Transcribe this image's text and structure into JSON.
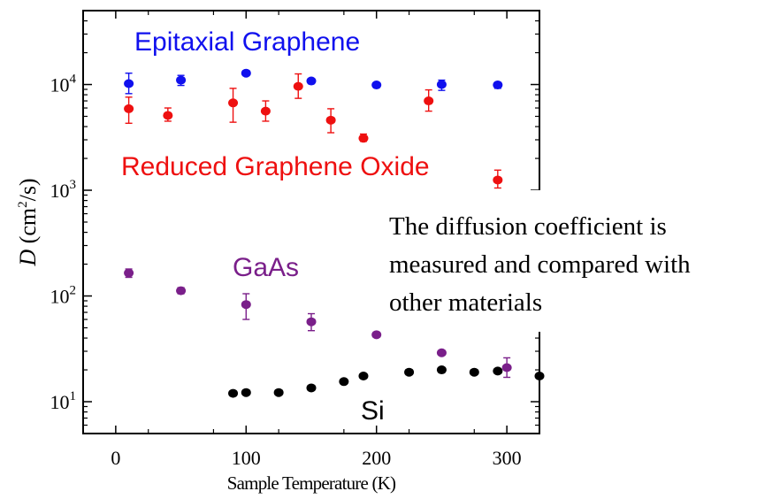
{
  "chart_data": {
    "type": "scatter",
    "xlabel": "Sample Temperature (K)",
    "ylabel": {
      "italic": "D",
      "open": " (cm",
      "sup": "2",
      "close": "/s)"
    },
    "xlim": [
      -25,
      325
    ],
    "ylim": [
      5,
      50000
    ],
    "yscale": "log",
    "grid": false,
    "x_ticks": [
      0,
      100,
      200,
      300
    ],
    "y_ticks": [
      {
        "value": 10,
        "base": "10",
        "exp": "1"
      },
      {
        "value": 100,
        "base": "10",
        "exp": "2"
      },
      {
        "value": 1000,
        "base": "10",
        "exp": "3"
      },
      {
        "value": 10000,
        "base": "10",
        "exp": "4"
      }
    ],
    "series": [
      {
        "name": "Epitaxial Graphene",
        "color": "#1010ee",
        "points": [
          {
            "x": 10,
            "y": 10200,
            "err": [
              8200,
              12800
            ]
          },
          {
            "x": 50,
            "y": 11000,
            "err": [
              9800,
              12200
            ]
          },
          {
            "x": 100,
            "y": 12800,
            "err": null
          },
          {
            "x": 150,
            "y": 10800,
            "err": null
          },
          {
            "x": 200,
            "y": 9900,
            "err": null
          },
          {
            "x": 250,
            "y": 10000,
            "err": [
              8800,
              11000
            ]
          },
          {
            "x": 293,
            "y": 9900,
            "err": [
              9200,
              10500
            ]
          }
        ]
      },
      {
        "name": "Reduced Graphene Oxide",
        "color": "#ee1010",
        "points": [
          {
            "x": 10,
            "y": 5900,
            "err": [
              4300,
              7600
            ]
          },
          {
            "x": 40,
            "y": 5100,
            "err": [
              4500,
              6000
            ]
          },
          {
            "x": 90,
            "y": 6700,
            "err": [
              4400,
              9200
            ]
          },
          {
            "x": 115,
            "y": 5600,
            "err": [
              4500,
              7000
            ]
          },
          {
            "x": 140,
            "y": 9600,
            "err": [
              7400,
              12600
            ]
          },
          {
            "x": 165,
            "y": 4600,
            "err": [
              3500,
              5900
            ]
          },
          {
            "x": 190,
            "y": 3100,
            "err": [
              2900,
              3400
            ]
          },
          {
            "x": 240,
            "y": 7000,
            "err": [
              5600,
              8900
            ]
          },
          {
            "x": 293,
            "y": 1250,
            "err": [
              1050,
              1550
            ]
          }
        ]
      },
      {
        "name": "GaAs",
        "color": "#7a1f8a",
        "points": [
          {
            "x": 10,
            "y": 165,
            "err": [
              150,
              180
            ]
          },
          {
            "x": 50,
            "y": 112,
            "err": [
              105,
              120
            ]
          },
          {
            "x": 100,
            "y": 83,
            "err": [
              60,
              105
            ]
          },
          {
            "x": 150,
            "y": 57,
            "err": [
              47,
              68
            ]
          },
          {
            "x": 200,
            "y": 43,
            "err": null
          },
          {
            "x": 250,
            "y": 29,
            "err": null
          },
          {
            "x": 300,
            "y": 21,
            "err": [
              17,
              26
            ]
          }
        ]
      },
      {
        "name": "Si",
        "color": "#000000",
        "points": [
          {
            "x": 90,
            "y": 12,
            "err": null
          },
          {
            "x": 100,
            "y": 12.2,
            "err": null
          },
          {
            "x": 125,
            "y": 12.2,
            "err": null
          },
          {
            "x": 150,
            "y": 13.5,
            "err": null
          },
          {
            "x": 175,
            "y": 15.5,
            "err": null
          },
          {
            "x": 190,
            "y": 17.5,
            "err": null
          },
          {
            "x": 225,
            "y": 19,
            "err": null
          },
          {
            "x": 250,
            "y": 20,
            "err": null
          },
          {
            "x": 275,
            "y": 19,
            "err": null
          },
          {
            "x": 293,
            "y": 19.5,
            "err": null
          },
          {
            "x": 325,
            "y": 17.5,
            "err": null
          }
        ]
      }
    ],
    "annotations": [
      {
        "text": "Epitaxial Graphene",
        "color": "#1010ee"
      },
      {
        "text": "Reduced Graphene Oxide",
        "color": "#ee1010"
      },
      {
        "text": "GaAs",
        "color": "#7a1f8a"
      },
      {
        "text": "Si",
        "color": "#000000"
      }
    ],
    "note_lines": [
      "The diffusion coefficient is",
      "measured and compared with",
      "other materials"
    ]
  }
}
